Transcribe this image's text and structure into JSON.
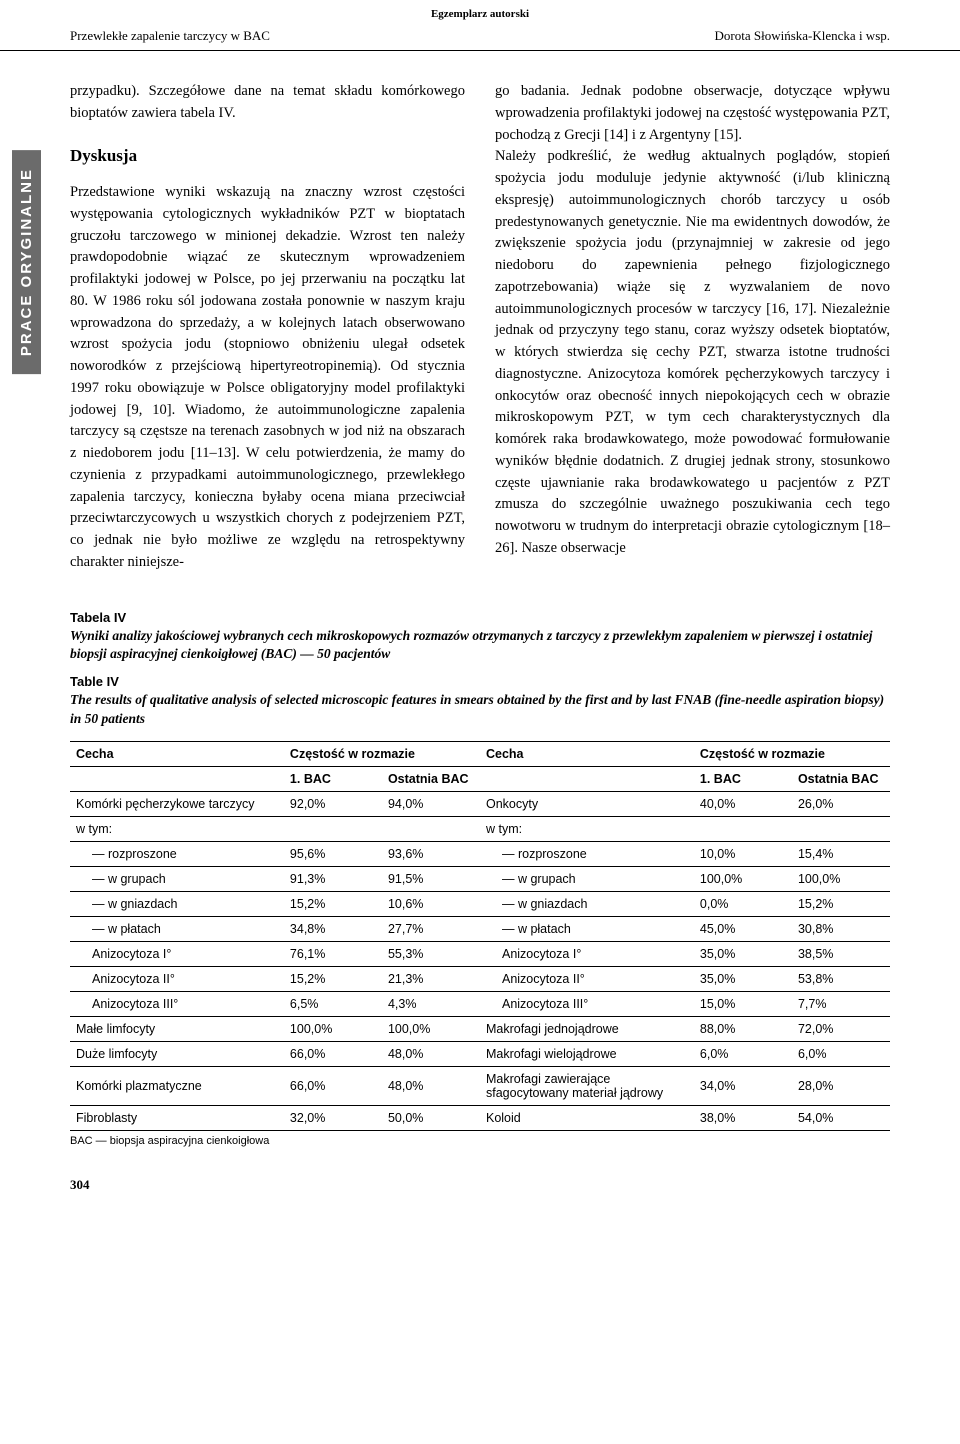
{
  "top_label": "Egzemplarz autorski",
  "header_left": "Przewlekłe zapalenie tarczycy w BAC",
  "header_right": "Dorota Słowińska-Klencka i wsp.",
  "side_tab": "PRACE ORYGINALNE",
  "page_number": "304",
  "left_col": {
    "lead": "przypadku). Szczegółowe dane na temat składu komórkowego bioptatów zawiera tabela IV.",
    "heading": "Dyskusja",
    "body": "Przedstawione wyniki wskazują na znaczny wzrost częstości występowania cytologicznych wykładników PZT w bioptatach gruczołu tarczowego w minionej dekadzie. Wzrost ten należy prawdopodobnie wiązać ze skutecznym wprowadzeniem profilaktyki jodowej w Polsce, po jej przerwaniu na początku lat 80. W 1986 roku sól jodowana została ponownie w naszym kraju wprowadzona do sprzedaży, a w kolejnych latach obserwowano wzrost spożycia jodu (stopniowo obniżeniu ulegał odsetek noworodków z przejściową hipertyreotropinemią). Od stycznia 1997 roku obowiązuje w Polsce obligatoryjny model profilaktyki jodowej [9, 10]. Wiadomo, że autoimmunologiczne zapalenia tarczycy są częstsze na terenach zasobnych w jod niż na obszarach z niedoborem jodu [11–13]. W celu potwierdzenia, że mamy do czynienia z przypadkami autoimmunologicznego, przewlekłego zapalenia tarczycy, konieczna byłaby ocena miana przeciwciał przeciwtarczycowych u wszystkich chorych z podejrzeniem PZT, co jednak nie było możliwe ze względu na retrospektywny charakter niniejsze-"
  },
  "right_col": {
    "body": "go badania. Jednak podobne obserwacje, dotyczące wpływu wprowadzenia profilaktyki jodowej na częstość występowania PZT, pochodzą z Grecji [14] i z Argentyny [15].\n    Należy podkreślić, że według aktualnych poglądów, stopień spożycia jodu moduluje jedynie aktywność (i/lub kliniczną ekspresję) autoimmunologicznych chorób tarczycy u osób predestynowanych genetycznie. Nie ma ewidentnych dowodów, że zwiększenie spożycia jodu (przynajmniej w zakresie od jego niedoboru do zapewnienia pełnego fizjologicznego zapotrzebowania) wiąże się z wyzwalaniem de novo autoimmunologicznych procesów w tarczycy [16, 17]. Niezależnie jednak od przyczyny tego stanu, coraz wyższy odsetek bioptatów, w których stwierdza się cechy PZT, stwarza istotne trudności diagnostyczne. Anizocytoza komórek pęcherzykowych tarczycy i onkocytów oraz obecność innych niepokojących cech w obrazie mikroskopowym PZT, w tym cech charakterystycznych dla komórek raka brodawkowatego, może powodować formułowanie wyników błędnie dodatnich. Z drugiej jednak strony, stosunkowo częste ujawnianie raka brodawkowatego u pacjentów z PZT zmusza do szczególnie uważnego poszukiwania cech tego nowotworu w trudnym do interpretacji obrazie cytologicznym [18–26]. Nasze obserwacje"
  },
  "table": {
    "caption_pl_label": "Tabela IV",
    "caption_pl": "Wyniki analizy jakościowej wybranych cech mikroskopowych rozmazów otrzymanych z tarczycy z przewlekłym zapaleniem w pierwszej i ostatniej biopsji aspiracyjnej cienkoigłowej (BAC) — 50 pacjentów",
    "caption_en_label": "Table IV",
    "caption_en": "The results of qualitative analysis of selected microscopic features in smears obtained by the first and by last FNAB (fine-needle aspiration biopsy) in 50 patients",
    "head": {
      "cecha": "Cecha",
      "czestosc": "Częstość w rozmazie",
      "bac1": "1. BAC",
      "ostatnia": "Ostatnia BAC"
    },
    "footnote": "BAC — biopsja aspiracyjna cienkoigłowa",
    "rows": [
      {
        "l": "Komórki  pęcherzykowe tarczycy",
        "a": "92,0%",
        "b": "94,0%",
        "r": "Onkocyty",
        "c": "40,0%",
        "d": "26,0%"
      },
      {
        "l": "w tym:",
        "a": "",
        "b": "",
        "r": "w tym:",
        "c": "",
        "d": ""
      },
      {
        "l": "— rozproszone",
        "a": "95,6%",
        "b": "93,6%",
        "r": "— rozproszone",
        "c": "10,0%",
        "d": "15,4%",
        "indent": true
      },
      {
        "l": "— w grupach",
        "a": "91,3%",
        "b": "91,5%",
        "r": "— w grupach",
        "c": "100,0%",
        "d": "100,0%",
        "indent": true
      },
      {
        "l": "— w gniazdach",
        "a": "15,2%",
        "b": "10,6%",
        "r": "— w gniazdach",
        "c": "0,0%",
        "d": "15,2%",
        "indent": true
      },
      {
        "l": "— w płatach",
        "a": "34,8%",
        "b": "27,7%",
        "r": "— w płatach",
        "c": "45,0%",
        "d": "30,8%",
        "indent": true
      },
      {
        "l": "Anizocytoza I°",
        "a": "76,1%",
        "b": "55,3%",
        "r": "Anizocytoza I°",
        "c": "35,0%",
        "d": "38,5%",
        "indent": true
      },
      {
        "l": "Anizocytoza II°",
        "a": "15,2%",
        "b": "21,3%",
        "r": "Anizocytoza II°",
        "c": "35,0%",
        "d": "53,8%",
        "indent": true
      },
      {
        "l": "Anizocytoza III°",
        "a": "6,5%",
        "b": "4,3%",
        "r": "Anizocytoza III°",
        "c": "15,0%",
        "d": "7,7%",
        "indent": true
      },
      {
        "l": "Małe limfocyty",
        "a": "100,0%",
        "b": "100,0%",
        "r": "Makrofagi jednojądrowe",
        "c": "88,0%",
        "d": "72,0%"
      },
      {
        "l": "Duże limfocyty",
        "a": "66,0%",
        "b": "48,0%",
        "r": "Makrofagi wielojądrowe",
        "c": "6,0%",
        "d": "6,0%"
      },
      {
        "l": "Komórki plazmatyczne",
        "a": "66,0%",
        "b": "48,0%",
        "r": "Makrofagi zawierające sfagocytowany materiał jądrowy",
        "c": "34,0%",
        "d": "28,0%"
      },
      {
        "l": "Fibroblasty",
        "a": "32,0%",
        "b": "50,0%",
        "r": "Koloid",
        "c": "38,0%",
        "d": "54,0%"
      }
    ]
  }
}
